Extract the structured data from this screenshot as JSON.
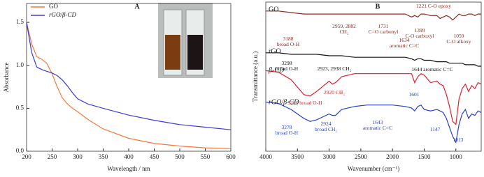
{
  "chart_data": [
    {
      "type": "line",
      "title": "A",
      "xlabel": "Wavelength / nm",
      "ylabel": "Absorbance",
      "x": [
        200,
        210,
        220,
        230,
        240,
        250,
        260,
        270,
        280,
        290,
        300,
        320,
        350,
        400,
        450,
        500,
        550,
        600
      ],
      "series": [
        {
          "name": "GO",
          "color": "#f4793a",
          "values": [
            1.5,
            1.25,
            1.1,
            1.07,
            1.02,
            0.9,
            0.75,
            0.62,
            0.55,
            0.5,
            0.46,
            0.37,
            0.26,
            0.15,
            0.09,
            0.06,
            0.04,
            0.03
          ]
        },
        {
          "name": "rGO/β-CD",
          "color": "#3a3ad6",
          "values": [
            1.5,
            1.15,
            0.98,
            0.95,
            0.93,
            0.91,
            0.88,
            0.83,
            0.76,
            0.68,
            0.61,
            0.55,
            0.5,
            0.42,
            0.36,
            0.31,
            0.28,
            0.25
          ]
        }
      ],
      "xlim": [
        200,
        600
      ],
      "xticks": [
        200,
        250,
        300,
        350,
        400,
        450,
        500,
        550,
        600
      ],
      "ylim": [
        0,
        1.72
      ],
      "yticks": [
        {
          "value": 0,
          "label": "0.0"
        },
        {
          "value": 0.5,
          "label": "0.5"
        },
        {
          "value": 1,
          "label": "1.0"
        },
        {
          "value": 1.5,
          "label": "1.5"
        }
      ],
      "legend": "upper left"
    },
    {
      "type": "line",
      "title": "B",
      "xlabel": "Wavenumber (cm⁻¹)",
      "ylabel": "Transmittance (a.u.)",
      "x": [
        4000,
        3800,
        3600,
        3400,
        3300,
        3200,
        3000,
        2950,
        2900,
        2800,
        2600,
        2400,
        2200,
        2000,
        1800,
        1700,
        1650,
        1600,
        1550,
        1500,
        1400,
        1300,
        1250,
        1200,
        1150,
        1100,
        1050,
        1000,
        950,
        900,
        850,
        800,
        750,
        700,
        650,
        600
      ],
      "series": [
        {
          "name": "GO",
          "color": "#8b2a1a",
          "values": [
            94,
            94,
            93,
            92,
            92,
            92,
            92,
            92,
            92,
            92,
            92,
            92,
            92,
            92,
            92,
            90,
            91,
            90,
            92,
            92,
            91,
            91,
            89,
            90,
            91,
            90,
            88,
            90,
            92,
            91,
            91,
            92,
            92,
            91,
            92,
            92
          ]
        },
        {
          "name": "rGO",
          "color": "#111111",
          "values": [
            66,
            66,
            65,
            65,
            65,
            65,
            64,
            64,
            64,
            64,
            63,
            63,
            63,
            63,
            63,
            62,
            61,
            62,
            62,
            61,
            61,
            60,
            60,
            60,
            60,
            59,
            59,
            59,
            59,
            59,
            58,
            58,
            58,
            58,
            57,
            57
          ]
        },
        {
          "name": "β-CD",
          "color": "#e0202a",
          "values": [
            54,
            53,
            48,
            38,
            37,
            40,
            47,
            45,
            46,
            50,
            52,
            52,
            52,
            52,
            52,
            52,
            46,
            50,
            52,
            51,
            46,
            47,
            45,
            44,
            38,
            30,
            20,
            18,
            35,
            42,
            45,
            40,
            44,
            42,
            46,
            45
          ]
        },
        {
          "name": "rGO/β-CD",
          "color": "#2a3ec8",
          "values": [
            33,
            32,
            28,
            22,
            20,
            21,
            25,
            24,
            24,
            28,
            30,
            31,
            31,
            31,
            30,
            29,
            27,
            30,
            31,
            28,
            27,
            28,
            27,
            26,
            22,
            16,
            10,
            6,
            18,
            25,
            28,
            22,
            25,
            24,
            27,
            26
          ]
        }
      ],
      "xlim": [
        4000,
        600
      ],
      "xticks": [
        4000,
        3500,
        3000,
        2500,
        2000,
        1500,
        1000
      ],
      "ylim": [
        0,
        100
      ],
      "yticks": [],
      "legend": false,
      "annotations": [
        {
          "lines": [
            "3188",
            "broad O-H"
          ],
          "color": "#8b2a1a"
        },
        {
          "lines": [
            "2959, 2882",
            "CH₂"
          ],
          "color": "#8b2a1a"
        },
        {
          "lines": [
            "1731",
            "C=O carbonyl"
          ],
          "color": "#8b2a1a"
        },
        {
          "lines": [
            "1634",
            "aromatic C=C"
          ],
          "color": "#8b2a1a"
        },
        {
          "lines": [
            "1399",
            "C-O carboxyl"
          ],
          "color": "#8b2a1a"
        },
        {
          "lines": [
            "1221 C-O epoxy"
          ],
          "color": "#8b2a1a"
        },
        {
          "lines": [
            "1059",
            "C-O alkoxy"
          ],
          "color": "#8b2a1a"
        },
        {
          "lines": [
            "3298",
            "broad O-H"
          ],
          "color": "#111111"
        },
        {
          "lines": [
            "2923, 2938 CH₂"
          ],
          "color": "#111111"
        },
        {
          "lines": [
            "1644 aromatic C=C"
          ],
          "color": "#111111"
        },
        {
          "lines": [
            "2920 CH₂"
          ],
          "color": "#e0202a"
        },
        {
          "lines": [
            "3286 broad O-H"
          ],
          "color": "#e0202a"
        },
        {
          "lines": [
            "1601"
          ],
          "color": "#2a3ec8"
        },
        {
          "lines": [
            "1643",
            "aromatic C=C"
          ],
          "color": "#2a3ec8"
        },
        {
          "lines": [
            "3278",
            "broad O-H"
          ],
          "color": "#2a3ec8"
        },
        {
          "lines": [
            "2924",
            "broad CH₂"
          ],
          "color": "#2a3ec8"
        },
        {
          "lines": [
            "1147"
          ],
          "color": "#2a3ec8"
        },
        {
          "lines": [
            "1013"
          ],
          "color": "#2a3ec8"
        }
      ]
    }
  ]
}
